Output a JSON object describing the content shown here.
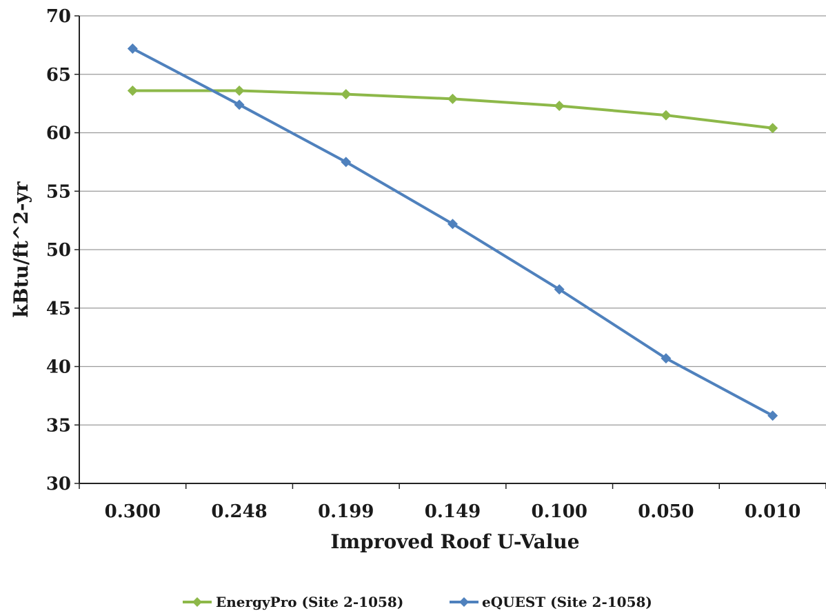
{
  "chart_data": {
    "type": "line",
    "title": "",
    "xlabel": "Improved Roof U-Value",
    "ylabel": "kBtu/ft^2-yr",
    "categories": [
      "0.300",
      "0.248",
      "0.199",
      "0.149",
      "0.100",
      "0.050",
      "0.010"
    ],
    "ylim": [
      30,
      70
    ],
    "yticks": [
      "30",
      "35",
      "40",
      "45",
      "50",
      "55",
      "60",
      "65",
      "70"
    ],
    "grid": "horizontal",
    "legend_position": "bottom",
    "series": [
      {
        "name": "EnergyPro (Site 2-1058)",
        "color": "#8DB849",
        "marker": "diamond",
        "values": [
          63.6,
          63.6,
          63.3,
          62.9,
          62.3,
          61.5,
          60.4
        ]
      },
      {
        "name": "eQUEST (Site 2-1058)",
        "color": "#4F81BD",
        "marker": "diamond",
        "values": [
          67.2,
          62.4,
          57.5,
          52.2,
          46.6,
          40.7,
          35.8
        ]
      }
    ]
  }
}
